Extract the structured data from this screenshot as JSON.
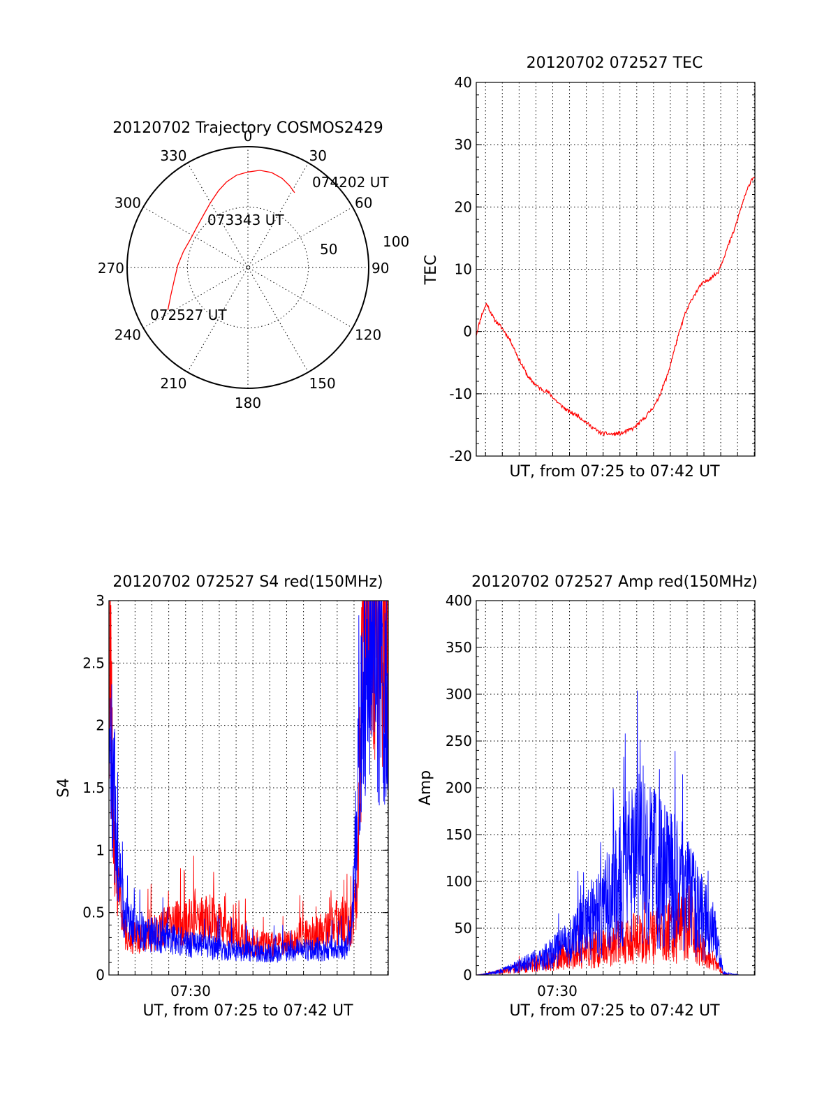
{
  "colors": {
    "red": "#ff0000",
    "blue": "#0000ff",
    "axes": "#000000",
    "background": "#ffffff"
  },
  "chart_data": [
    {
      "id": "trajectory",
      "type": "polar",
      "title": "20120702 Trajectory COSMOS2429",
      "angle_labels": [
        "0",
        "30",
        "60",
        "90",
        "120",
        "150",
        "180",
        "210",
        "240",
        "270",
        "300",
        "330"
      ],
      "radius_labels": [
        "50",
        "100"
      ],
      "radius_max": 100,
      "grid": true,
      "track": {
        "points": [
          {
            "az": 242,
            "r": 75
          },
          {
            "az": 250,
            "r": 68
          },
          {
            "az": 260,
            "r": 62
          },
          {
            "az": 272,
            "r": 58
          },
          {
            "az": 284,
            "r": 55
          },
          {
            "az": 297,
            "r": 53
          },
          {
            "az": 309,
            "r": 54
          },
          {
            "az": 320,
            "r": 57
          },
          {
            "az": 330,
            "r": 62
          },
          {
            "az": 339,
            "r": 68
          },
          {
            "az": 346,
            "r": 73
          },
          {
            "az": 353,
            "r": 77
          },
          {
            "az": 0,
            "r": 79
          },
          {
            "az": 7,
            "r": 81
          },
          {
            "az": 14,
            "r": 81
          },
          {
            "az": 21,
            "r": 79
          },
          {
            "az": 27,
            "r": 76
          },
          {
            "az": 32,
            "r": 73
          }
        ]
      },
      "annotations": [
        {
          "text": "072527 UT",
          "az": 242,
          "r": 75
        },
        {
          "text": "073343 UT",
          "az": 309,
          "r": 54
        },
        {
          "text": "074202 UT",
          "az": 32,
          "r": 73
        }
      ]
    },
    {
      "id": "tec",
      "type": "line",
      "title": "20120702 072527 TEC",
      "xlabel": "UT, from 07:25 to 07:42 UT",
      "ylabel": "TEC",
      "xlim": [
        "07:25:27",
        "07:42:02"
      ],
      "ylim": [
        -20,
        40
      ],
      "yticks": [
        "-20",
        "-10",
        "0",
        "10",
        "20",
        "30",
        "40"
      ],
      "grid": true,
      "series": [
        {
          "color": "red",
          "x": [
            "07:25:27",
            "07:25:45",
            "07:26:04",
            "07:26:30",
            "07:27:00",
            "07:27:30",
            "07:28:00",
            "07:28:35",
            "07:29:10",
            "07:29:45",
            "07:30:20",
            "07:30:55",
            "07:31:30",
            "07:32:10",
            "07:32:50",
            "07:33:30",
            "07:34:10",
            "07:34:50",
            "07:35:30",
            "07:36:10",
            "07:36:50",
            "07:37:20",
            "07:37:50",
            "07:38:20",
            "07:38:50",
            "07:39:20",
            "07:39:50",
            "07:40:20",
            "07:40:50",
            "07:41:20",
            "07:41:50",
            "07:42:02"
          ],
          "y": [
            -0.5,
            2.5,
            4.5,
            2.0,
            0.5,
            -1.5,
            -4.5,
            -7.5,
            -9.0,
            -9.8,
            -11.5,
            -12.8,
            -13.5,
            -15.0,
            -16.3,
            -16.5,
            -16.3,
            -15.5,
            -13.8,
            -11.5,
            -7.0,
            -2.0,
            2.5,
            5.5,
            7.5,
            8.5,
            9.5,
            13.0,
            16.5,
            21.0,
            24.5,
            25.0
          ]
        }
      ]
    },
    {
      "id": "s4",
      "type": "line",
      "title": "20120702 072527 S4 red(150MHz)",
      "xlabel": "UT, from 07:25 to 07:42 UT",
      "ylabel": "S4",
      "xticks": [
        "07:30"
      ],
      "xlim": [
        "07:25:27",
        "07:42:02"
      ],
      "ylim": [
        0,
        3
      ],
      "yticks": [
        "0",
        "0.5",
        "1",
        "1.5",
        "2",
        "2.5",
        "3"
      ],
      "grid": true,
      "series": [
        {
          "color": "red",
          "x": [
            "07:25:27",
            "07:25:40",
            "07:25:55",
            "07:26:15",
            "07:26:40",
            "07:27:30",
            "07:28:30",
            "07:29:30",
            "07:30:30",
            "07:31:30",
            "07:32:30",
            "07:33:30",
            "07:34:30",
            "07:35:30",
            "07:36:30",
            "07:37:30",
            "07:38:30",
            "07:39:20",
            "07:39:50",
            "07:40:10",
            "07:40:30",
            "07:41:00",
            "07:41:30",
            "07:42:02"
          ],
          "y": [
            2.9,
            1.4,
            0.7,
            0.42,
            0.3,
            0.3,
            0.36,
            0.42,
            0.42,
            0.45,
            0.35,
            0.28,
            0.24,
            0.24,
            0.28,
            0.32,
            0.36,
            0.46,
            0.38,
            0.62,
            2.6,
            3.0,
            3.0,
            3.0
          ]
        },
        {
          "color": "blue",
          "x": [
            "07:25:27",
            "07:25:40",
            "07:25:55",
            "07:26:15",
            "07:26:40",
            "07:27:30",
            "07:28:30",
            "07:29:30",
            "07:30:30",
            "07:31:30",
            "07:32:30",
            "07:33:30",
            "07:34:30",
            "07:35:30",
            "07:36:30",
            "07:37:30",
            "07:38:30",
            "07:39:20",
            "07:39:50",
            "07:40:10",
            "07:40:30",
            "07:41:00",
            "07:41:30",
            "07:42:02"
          ],
          "y": [
            1.7,
            1.6,
            1.0,
            0.55,
            0.4,
            0.34,
            0.31,
            0.28,
            0.24,
            0.22,
            0.2,
            0.19,
            0.18,
            0.18,
            0.2,
            0.2,
            0.19,
            0.2,
            0.3,
            1.2,
            2.3,
            2.6,
            2.4,
            2.2
          ]
        }
      ]
    },
    {
      "id": "amp",
      "type": "line",
      "title": "20120702 072527 Amp red(150MHz)",
      "xlabel": "UT, from 07:25 to 07:42 UT",
      "ylabel": "Amp",
      "xticks": [
        "07:30"
      ],
      "xlim": [
        "07:25:27",
        "07:42:02"
      ],
      "ylim": [
        0,
        400
      ],
      "yticks": [
        "0",
        "50",
        "100",
        "150",
        "200",
        "250",
        "300",
        "350",
        "400"
      ],
      "grid": true,
      "series": [
        {
          "color": "red",
          "x": [
            "07:25:27",
            "07:26:00",
            "07:26:40",
            "07:27:20",
            "07:28:00",
            "07:28:40",
            "07:29:20",
            "07:30:00",
            "07:30:40",
            "07:31:20",
            "07:32:00",
            "07:32:40",
            "07:33:20",
            "07:34:00",
            "07:34:40",
            "07:35:20",
            "07:36:00",
            "07:36:40",
            "07:37:10",
            "07:37:40",
            "07:38:10",
            "07:38:40",
            "07:39:10",
            "07:39:40",
            "07:40:10",
            "07:40:40",
            "07:41:10",
            "07:41:40",
            "07:42:02"
          ],
          "y": [
            0,
            1,
            3,
            5,
            8,
            10,
            14,
            16,
            20,
            24,
            26,
            28,
            30,
            34,
            38,
            40,
            42,
            44,
            46,
            50,
            60,
            32,
            22,
            12,
            1,
            0,
            0,
            0,
            0
          ]
        },
        {
          "color": "blue",
          "x": [
            "07:25:27",
            "07:26:00",
            "07:26:40",
            "07:27:20",
            "07:28:00",
            "07:28:40",
            "07:29:20",
            "07:30:00",
            "07:30:40",
            "07:31:20",
            "07:32:00",
            "07:32:40",
            "07:33:20",
            "07:34:00",
            "07:34:40",
            "07:35:20",
            "07:36:00",
            "07:36:40",
            "07:37:10",
            "07:37:40",
            "07:38:10",
            "07:38:40",
            "07:39:10",
            "07:39:40",
            "07:40:10",
            "07:40:40",
            "07:41:10",
            "07:41:40",
            "07:42:02"
          ],
          "y": [
            0,
            1,
            3,
            6,
            10,
            14,
            18,
            24,
            30,
            40,
            55,
            65,
            80,
            100,
            115,
            120,
            115,
            105,
            100,
            95,
            80,
            70,
            55,
            40,
            2,
            1,
            0,
            0,
            0
          ]
        }
      ]
    }
  ]
}
